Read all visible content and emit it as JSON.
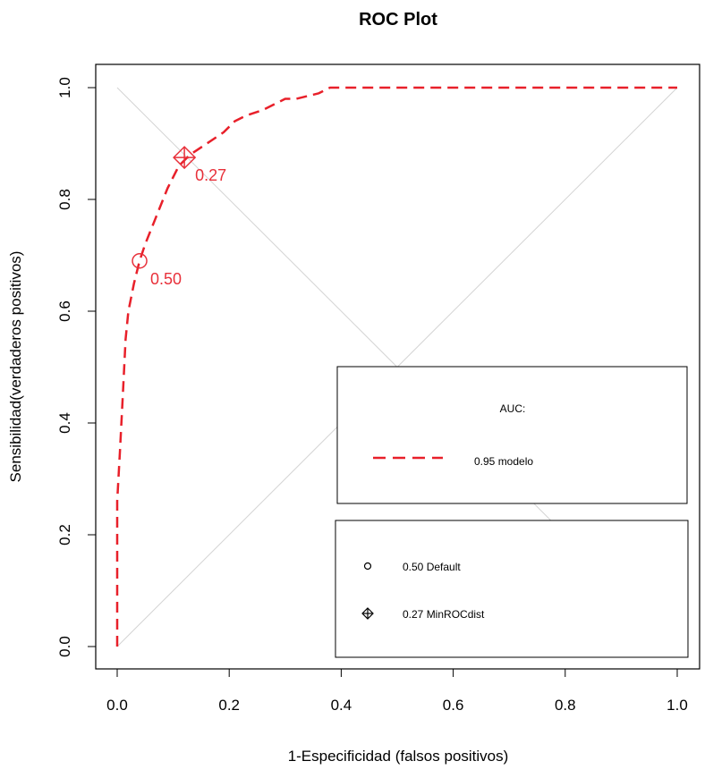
{
  "chart_data": {
    "type": "line",
    "title": "ROC Plot",
    "xlabel": "1-Especificidad (falsos positivos)",
    "ylabel": "Sensibilidad(verdaderos positivos)",
    "xlim": [
      0,
      1
    ],
    "ylim": [
      0,
      1
    ],
    "x_ticks": [
      "0.0",
      "0.2",
      "0.4",
      "0.6",
      "0.8",
      "1.0"
    ],
    "y_ticks": [
      "0.0",
      "0.2",
      "0.4",
      "0.6",
      "0.8",
      "1.0"
    ],
    "grid": false,
    "colors": {
      "curve": "#e8202a",
      "point": "#e8303a",
      "reference": "#d3d3d3"
    },
    "series": [
      {
        "name": "modelo",
        "line_style": "dashed",
        "x": [
          0.0,
          0.0,
          0.005,
          0.01,
          0.015,
          0.02,
          0.03,
          0.04,
          0.05,
          0.07,
          0.09,
          0.11,
          0.13,
          0.16,
          0.19,
          0.21,
          0.23,
          0.26,
          0.28,
          0.3,
          0.32,
          0.36,
          0.38,
          0.4,
          0.5,
          0.6,
          0.7,
          0.8,
          0.9,
          1.0
        ],
        "y": [
          0.0,
          0.26,
          0.35,
          0.45,
          0.55,
          0.6,
          0.65,
          0.69,
          0.72,
          0.77,
          0.82,
          0.86,
          0.88,
          0.9,
          0.92,
          0.94,
          0.95,
          0.96,
          0.97,
          0.98,
          0.98,
          0.99,
          1.0,
          1.0,
          1.0,
          1.0,
          1.0,
          1.0,
          1.0,
          1.0
        ]
      }
    ],
    "reference_lines": [
      {
        "from": [
          0,
          0
        ],
        "to": [
          1,
          1
        ]
      },
      {
        "from": [
          0,
          1
        ],
        "to": [
          1,
          0
        ]
      }
    ],
    "annotations": [
      {
        "marker": "circle",
        "x": 0.04,
        "y": 0.69,
        "label": "0.50"
      },
      {
        "marker": "diamond-cross",
        "x": 0.12,
        "y": 0.875,
        "label": "0.27"
      }
    ],
    "legends": {
      "auc": {
        "title": "AUC:",
        "entries": [
          {
            "symbol": "dashed-line",
            "label": "0.95 modelo"
          }
        ]
      },
      "thresholds": {
        "entries": [
          {
            "symbol": "circle",
            "label": "0.50 Default"
          },
          {
            "symbol": "diamond-cross",
            "label": "0.27 MinROCdist"
          }
        ]
      }
    }
  }
}
